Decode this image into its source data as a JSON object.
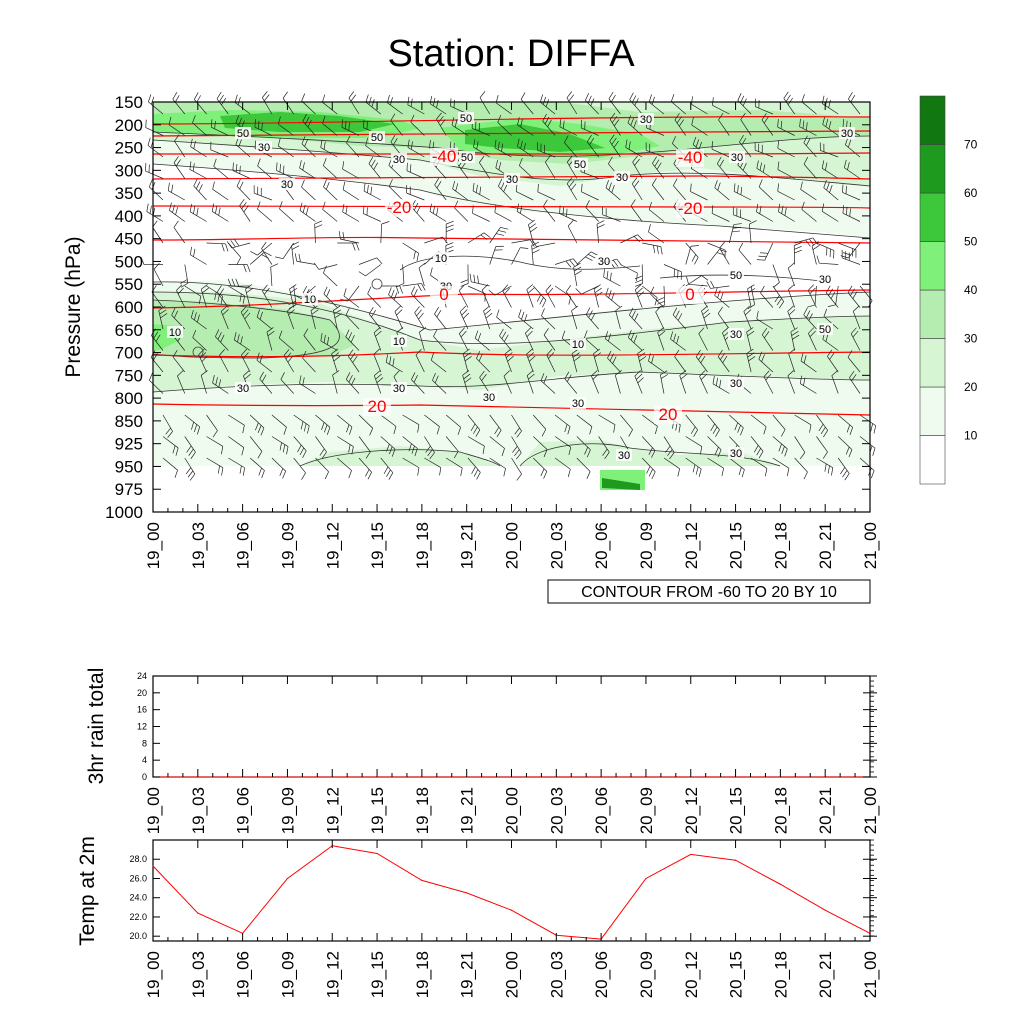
{
  "title": "Station: DIFFA",
  "time_labels": [
    "19_00",
    "19_03",
    "19_06",
    "19_09",
    "19_12",
    "19_15",
    "19_18",
    "19_21",
    "20_00",
    "20_03",
    "20_06",
    "20_09",
    "20_12",
    "20_15",
    "20_18",
    "20_21",
    "21_00"
  ],
  "chart_data": [
    {
      "type": "heatmap",
      "name": "wind-speed-temperature-cross-section",
      "ylabel": "Pressure (hPa)",
      "pressure_levels": [
        150,
        200,
        250,
        300,
        350,
        400,
        450,
        500,
        550,
        600,
        650,
        700,
        750,
        800,
        850,
        925,
        950,
        975,
        1000
      ],
      "shading_variable": "wind speed",
      "colorbar": {
        "levels": [
          10,
          20,
          30,
          40,
          50,
          60,
          70
        ],
        "colors": [
          "#ffffff",
          "#f0fbef",
          "#d6f5d3",
          "#b5ecb0",
          "#7ff07a",
          "#3cc83a",
          "#1e9a1e",
          "#117711"
        ]
      },
      "temperature_contours": [
        {
          "label": "-40",
          "positions": [
            "19_18 @ 245 hPa",
            "20_12 @ 245 hPa"
          ]
        },
        {
          "label": "-20",
          "positions": [
            "19_15 @ 385 hPa",
            "20_12 @ 390 hPa"
          ]
        },
        {
          "label": "0",
          "positions": [
            "19_18 @ 575 hPa",
            "20_12 @ 575 hPa"
          ]
        },
        {
          "label": "20",
          "positions": [
            "19_15 @ 820 hPa",
            "20_09 @ 835 hPa"
          ]
        }
      ],
      "wind_speed_labels": [
        "50",
        "50",
        "30",
        "50",
        "30",
        "30",
        "50",
        "50",
        "30",
        "30",
        "10",
        "30",
        "50",
        "30",
        "30",
        "10",
        "10",
        "10",
        "10",
        "30",
        "50",
        "30",
        "30",
        "30",
        "30",
        "30",
        "30",
        "30",
        "30",
        "30",
        "30"
      ],
      "info_label": "CONTOUR FROM -60 TO 20 BY 10"
    },
    {
      "type": "line",
      "name": "3hr-rain-total",
      "ylabel": "3hr rain total",
      "yticks": [
        "0",
        "4",
        "8",
        "12",
        "16",
        "20",
        "24"
      ],
      "ylim": [
        0,
        24
      ],
      "values": [
        0,
        0,
        0,
        0,
        0,
        0,
        0,
        0,
        0,
        0,
        0,
        0,
        0,
        0,
        0,
        0,
        0
      ]
    },
    {
      "type": "line",
      "name": "temp-at-2m",
      "ylabel": "Temp at 2m",
      "yticks": [
        "20.0",
        "22.0",
        "24.0",
        "26.0",
        "28.0"
      ],
      "ylim": [
        19.5,
        30.0
      ],
      "values": [
        27.3,
        22.4,
        20.3,
        26.0,
        29.4,
        28.6,
        25.8,
        24.5,
        22.7,
        20.1,
        19.7,
        26.0,
        28.5,
        27.9,
        25.4,
        22.7,
        20.3
      ]
    }
  ]
}
